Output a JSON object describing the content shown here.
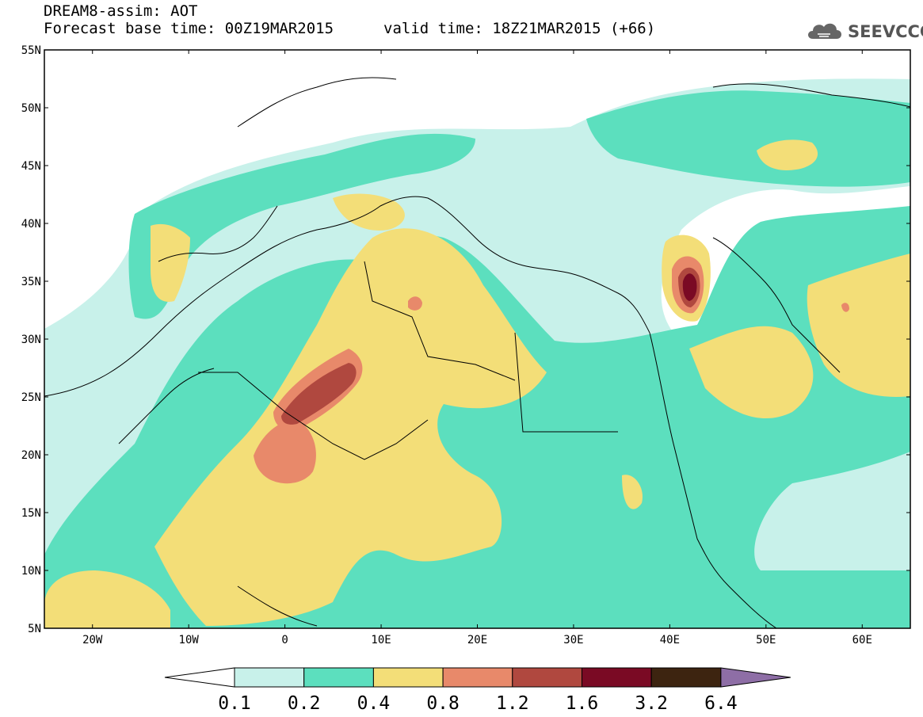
{
  "header": {
    "line1": "DREAM8-assim: AOT",
    "line2": "Forecast base time: 00Z19MAR2015",
    "line3": "valid time: 18Z21MAR2015 (+66)"
  },
  "logo": {
    "text": "SEEVCCC",
    "icon": "cloud-icon"
  },
  "map": {
    "lon_range": [
      -25,
      65
    ],
    "lat_range": [
      5,
      55
    ],
    "lon_ticks": [
      "20W",
      "10W",
      "0",
      "10E",
      "20E",
      "30E",
      "40E",
      "50E",
      "60E"
    ],
    "lat_ticks": [
      "55N",
      "50N",
      "45N",
      "40N",
      "35N",
      "30N",
      "25N",
      "20N",
      "15N",
      "10N",
      "5N"
    ]
  },
  "colorbar": {
    "labels": [
      "0.1",
      "0.2",
      "0.4",
      "0.8",
      "1.2",
      "1.6",
      "3.2",
      "6.4"
    ],
    "colors": [
      "#ffffff",
      "#c8f1ea",
      "#5cdfbe",
      "#f3de78",
      "#e8896a",
      "#b0483f",
      "#7a0a24",
      "#3d2410",
      "#8e6ea6"
    ]
  }
}
